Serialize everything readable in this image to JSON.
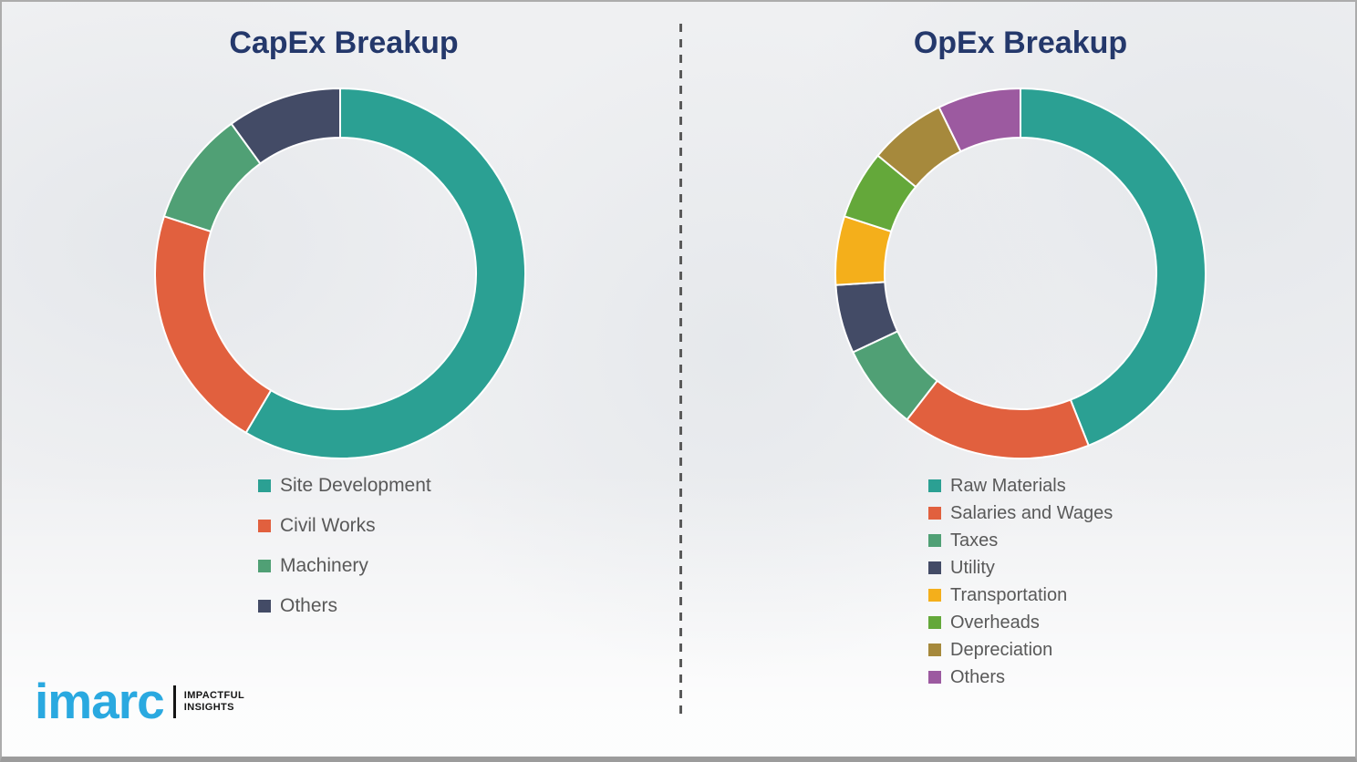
{
  "page": {
    "background_color": "#EFF0F2",
    "divider_style": "vertical-dashed-gray"
  },
  "chart_data": [
    {
      "type": "pie",
      "subtype": "donut",
      "title": "CapEx Breakup",
      "title_color": "#24386B",
      "start_angle_deg": 0,
      "direction": "clockwise",
      "legend_position": "below-left",
      "values_are_estimated_percent": true,
      "labels": [
        "Site Development",
        "Civil Works",
        "Machinery",
        "Others"
      ],
      "values": [
        58.5,
        21.5,
        10,
        10
      ],
      "colors": [
        "#2BA093",
        "#E1603E",
        "#50A075",
        "#434B66"
      ]
    },
    {
      "type": "pie",
      "subtype": "donut",
      "title": "OpEx Breakup",
      "title_color": "#24386B",
      "start_angle_deg": 0,
      "direction": "clockwise",
      "legend_position": "below-left",
      "values_are_estimated_percent": true,
      "labels": [
        "Raw Materials",
        "Salaries and Wages",
        "Taxes",
        "Utility",
        "Transportation",
        "Overheads",
        "Depreciation",
        "Others"
      ],
      "values": [
        44,
        16.5,
        7.5,
        6,
        6,
        6,
        6.75,
        7.25
      ],
      "colors": [
        "#2BA093",
        "#E1603E",
        "#50A075",
        "#434B66",
        "#F4AF1B",
        "#64A83A",
        "#A6893C",
        "#9C5AA0"
      ]
    }
  ],
  "logo": {
    "brand": "imarc",
    "tagline_line1": "IMPACTFUL",
    "tagline_line2": "INSIGHTS",
    "brand_color": "#2AA9E0"
  }
}
